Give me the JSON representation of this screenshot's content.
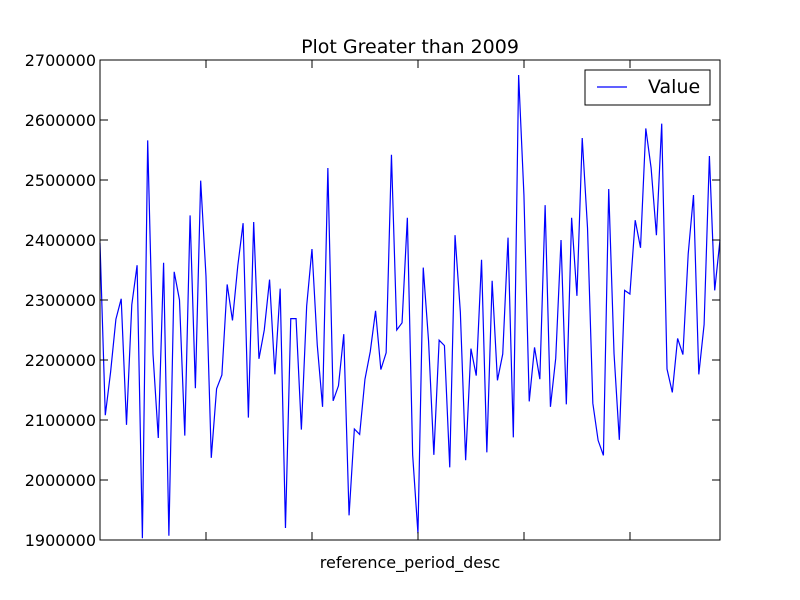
{
  "chart_data": {
    "type": "line",
    "title": "Plot Greater than 2009",
    "xlabel": "reference_period_desc",
    "ylabel": "",
    "ylim": [
      1900000,
      2700000
    ],
    "yticks": [
      "1900000",
      "2000000",
      "2100000",
      "2200000",
      "2300000",
      "2400000",
      "2500000",
      "2600000",
      "2700000"
    ],
    "x_tick_labels": [],
    "grid": false,
    "legend": {
      "position": "top-right",
      "entries": [
        "Value"
      ]
    },
    "colors": {
      "line": "#0000ff",
      "axes": "#000000",
      "background": "#ffffff"
    },
    "series": [
      {
        "name": "Value",
        "values": [
          2395000,
          2108000,
          2180000,
          2268000,
          2302000,
          2092000,
          2292000,
          2358000,
          1903000,
          2566000,
          2210000,
          2070000,
          2362000,
          1907000,
          2347000,
          2300000,
          2074000,
          2441000,
          2153000,
          2499000,
          2340000,
          2037000,
          2152000,
          2175000,
          2326000,
          2266000,
          2357000,
          2428000,
          2104000,
          2430000,
          2202000,
          2250000,
          2334000,
          2176000,
          2319000,
          1920000,
          2269000,
          2269000,
          2084000,
          2290000,
          2385000,
          2225000,
          2122000,
          2520000,
          2132000,
          2157000,
          2243000,
          1941000,
          2085000,
          2076000,
          2168000,
          2214000,
          2282000,
          2184000,
          2212000,
          2542000,
          2250000,
          2262000,
          2437000,
          2042000,
          1911000,
          2354000,
          2232000,
          2042000,
          2233000,
          2224000,
          2021000,
          2408000,
          2280000,
          2033000,
          2219000,
          2174000,
          2367000,
          2046000,
          2332000,
          2166000,
          2210000,
          2404000,
          2071000,
          2675000,
          2475000,
          2131000,
          2221000,
          2168000,
          2458000,
          2122000,
          2203000,
          2400000,
          2126000,
          2437000,
          2307000,
          2570000,
          2420000,
          2128000,
          2066000,
          2041000,
          2485000,
          2211000,
          2067000,
          2316000,
          2310000,
          2433000,
          2387000,
          2586000,
          2520000,
          2408000,
          2594000,
          2185000,
          2146000,
          2236000,
          2209000,
          2377000,
          2475000,
          2176000,
          2259000,
          2540000,
          2316000,
          2400000
        ]
      }
    ]
  }
}
